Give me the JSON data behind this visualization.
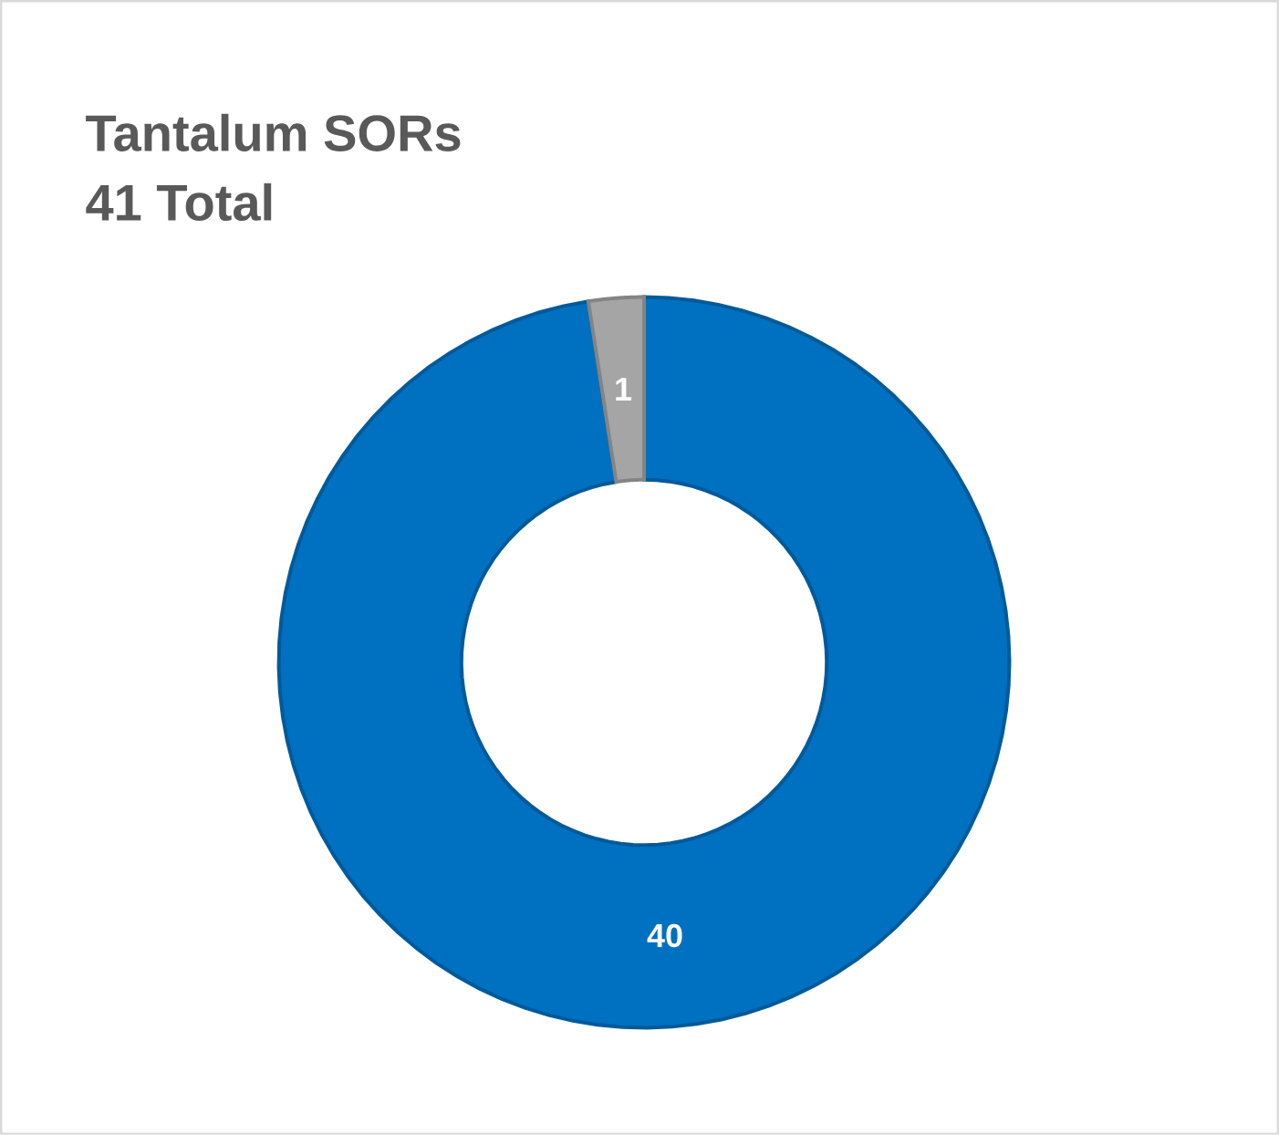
{
  "chart_data": {
    "type": "donut",
    "title": "Tantalum SORs",
    "subtitle": "41 Total",
    "categories": [
      null,
      null
    ],
    "values": [
      40,
      1
    ],
    "colors": [
      "#0070c0",
      "#a5a5a5"
    ],
    "data_labels": true
  }
}
